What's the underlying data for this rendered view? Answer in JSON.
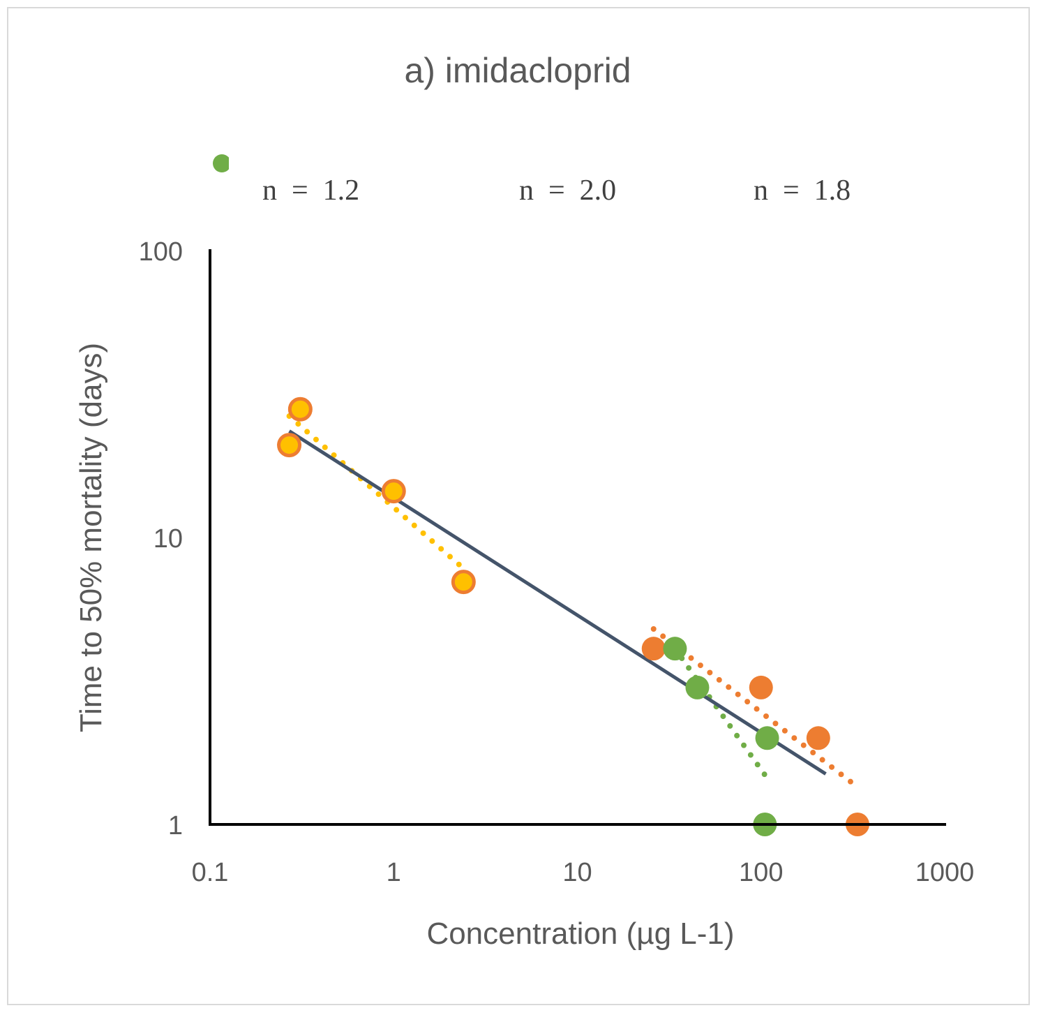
{
  "chart_data": {
    "type": "scatter",
    "title": "a)    imidacloprid",
    "xlabel": "Concentration (µg L-1)",
    "ylabel": "Time to 50% mortality (days)",
    "xscale": "log",
    "yscale": "log",
    "xlim": [
      0.1,
      1000
    ],
    "ylim": [
      1,
      100
    ],
    "xticks": [
      "0.1",
      "1",
      "10",
      "100",
      "1000"
    ],
    "yticks": [
      "1",
      "10",
      "100"
    ],
    "xtick_values": [
      0.1,
      1,
      10,
      100,
      1000
    ],
    "ytick_values": [
      1,
      10,
      100
    ],
    "annotations": [
      "n  =  1.2",
      "n  =  2.0",
      "n  =  1.8"
    ],
    "legend_marker_color": "#70ad47",
    "series": [
      {
        "name": "yellow",
        "fill": "#ffc000",
        "stroke": "#ed7d31",
        "points": [
          [
            0.27,
            21
          ],
          [
            0.31,
            28
          ],
          [
            1.0,
            14.5
          ],
          [
            2.4,
            7.0
          ]
        ],
        "trend": [
          [
            0.27,
            26.5
          ],
          [
            2.4,
            7.8
          ]
        ]
      },
      {
        "name": "orange",
        "fill": "#ed7d31",
        "stroke": "#ed7d31",
        "points": [
          [
            26,
            4.1
          ],
          [
            100,
            3.0
          ],
          [
            205,
            2.0
          ],
          [
            335,
            1.0
          ]
        ],
        "trend": [
          [
            26,
            4.8
          ],
          [
            335,
            1.35
          ]
        ]
      },
      {
        "name": "green",
        "fill": "#70ad47",
        "stroke": "#70ad47",
        "points": [
          [
            34,
            4.1
          ],
          [
            45,
            3.0
          ],
          [
            108,
            2.0
          ],
          [
            105,
            1.0
          ]
        ],
        "trend": [
          [
            34,
            4.1
          ],
          [
            108,
            1.45
          ]
        ]
      }
    ],
    "overall_fit": {
      "color": "#44546a",
      "points": [
        [
          0.27,
          23.5
        ],
        [
          225,
          1.5
        ]
      ]
    }
  }
}
